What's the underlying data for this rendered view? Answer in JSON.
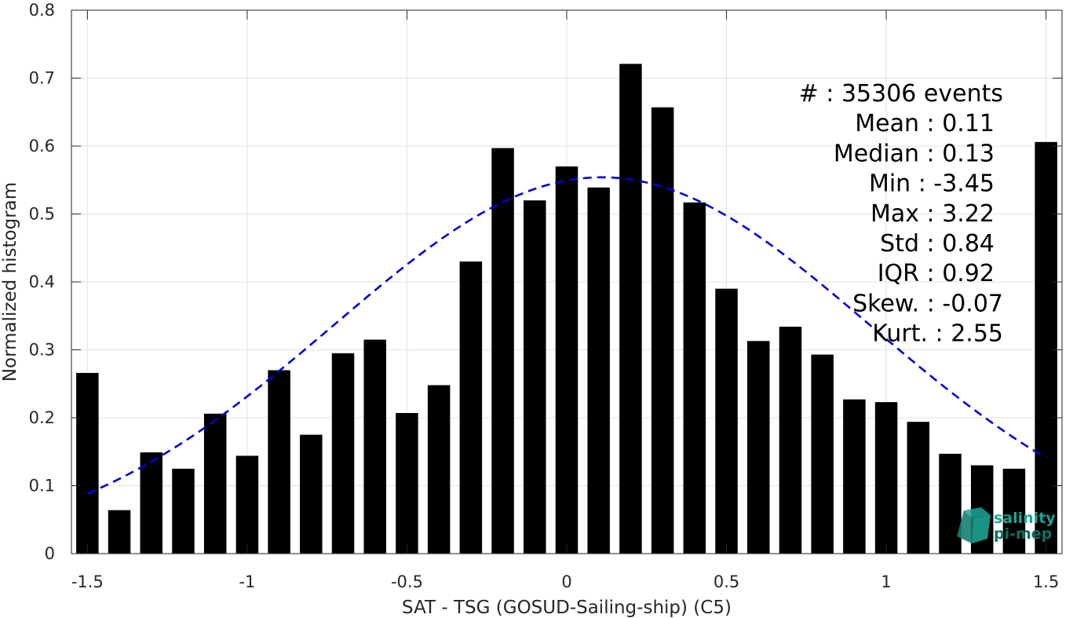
{
  "chart_data": {
    "type": "bar",
    "xlabel": "SAT - TSG (GOSUD-Sailing-ship) (C5)",
    "ylabel": "Normalized histogram",
    "xlim": [
      -1.55,
      1.55
    ],
    "ylim": [
      0,
      0.8
    ],
    "xticks": [
      -1.5,
      -1,
      -0.5,
      0,
      0.5,
      1,
      1.5
    ],
    "xtick_labels": [
      "-1.5",
      "-1",
      "-0.5",
      "0",
      "0.5",
      "1",
      "1.5"
    ],
    "yticks": [
      0,
      0.1,
      0.2,
      0.3,
      0.4,
      0.5,
      0.6,
      0.7,
      0.8
    ],
    "ytick_labels": [
      "0",
      "0.1",
      "0.2",
      "0.3",
      "0.4",
      "0.5",
      "0.6",
      "0.7",
      "0.8"
    ],
    "grid": true,
    "bar_color": "#000000",
    "x": [
      -1.5,
      -1.4,
      -1.3,
      -1.2,
      -1.1,
      -1.0,
      -0.9,
      -0.8,
      -0.7,
      -0.6,
      -0.5,
      -0.4,
      -0.3,
      -0.2,
      -0.1,
      0.0,
      0.1,
      0.2,
      0.3,
      0.4,
      0.5,
      0.6,
      0.7,
      0.8,
      0.9,
      1.0,
      1.1,
      1.2,
      1.3,
      1.4,
      1.5
    ],
    "values": [
      0.266,
      0.064,
      0.149,
      0.125,
      0.206,
      0.144,
      0.27,
      0.175,
      0.295,
      0.315,
      0.207,
      0.248,
      0.43,
      0.597,
      0.52,
      0.57,
      0.539,
      0.721,
      0.657,
      0.517,
      0.39,
      0.313,
      0.334,
      0.293,
      0.227,
      0.223,
      0.194,
      0.147,
      0.13,
      0.125,
      0.606
    ],
    "fit_curve": {
      "style": "dashed",
      "color": "#0000dd",
      "mean": 0.11,
      "std": 0.84,
      "peak": 0.554,
      "x_range": [
        -1.5,
        1.5
      ]
    },
    "stats": [
      "#  : 35306 events",
      "Mean : 0.11",
      "Median : 0.13",
      "Min : -3.45",
      "Max : 3.22",
      "Std : 0.84",
      "IQR : 0.92",
      "Skew. : -0.07",
      "Kurt. : 2.55"
    ]
  },
  "logo": {
    "line1": "salinity",
    "line2": "pi-mep",
    "color": "#1aa394"
  }
}
